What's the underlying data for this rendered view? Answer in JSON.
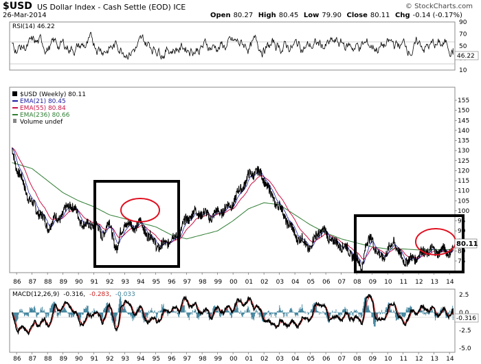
{
  "header": {
    "symbol": "$USD",
    "description": "US Dollar Index - Cash Settle (EOD) ICE",
    "date": "26-Mar-2014",
    "open_label": "Open",
    "open": "80.27",
    "high_label": "High",
    "high": "80.45",
    "low_label": "Low",
    "low": "79.90",
    "close_label": "Close",
    "close": "80.11",
    "chg_label": "Chg",
    "chg": "-0.14 (-0.17%)",
    "brand": "© StockCharts.com"
  },
  "rsi": {
    "label": "RSI(14) 46.22",
    "current": "46.22",
    "ticks": [
      "90",
      "70",
      "50",
      "30",
      "10"
    ]
  },
  "legend": {
    "main": "$USD (Weekly) 80.11",
    "ema21": "EMA(21) 80.45",
    "ema55": "EMA(55) 80.84",
    "ema236": "EMA(236) 80.66",
    "volume": "Volume undef",
    "price_tag": "80.11"
  },
  "macd": {
    "label_prefix": "MACD(12,26,9)",
    "v1": "-0.316,",
    "v2": "-0.283,",
    "v3": "-0.033",
    "current": "-0.316",
    "ticks": [
      "2.5",
      "0.0",
      "-2.5",
      "-5.0"
    ]
  },
  "colors": {
    "price": "#000000",
    "ema21": "#1a1aa0",
    "ema55": "#cc1144",
    "ema236": "#2e7d32",
    "macd": "#000000",
    "signal": "#cc2222",
    "histogram": "#3a7f9a",
    "annotation_box": "#000000",
    "annotation_circle": "#e01020"
  },
  "chart_data": {
    "type": "line",
    "title": "US Dollar Index - Cash Settle (EOD) ICE",
    "price_ticks": [
      "155",
      "150",
      "145",
      "140",
      "135",
      "130",
      "125",
      "120",
      "115",
      "110",
      "105",
      "100",
      "95",
      "90",
      "85",
      "80",
      "75"
    ],
    "x_ticks": [
      "86",
      "87",
      "88",
      "89",
      "90",
      "91",
      "92",
      "93",
      "94",
      "95",
      "96",
      "97",
      "98",
      "99",
      "00",
      "01",
      "02",
      "03",
      "04",
      "05",
      "06",
      "07",
      "08",
      "09",
      "10",
      "11",
      "12",
      "13",
      "14"
    ],
    "series": [
      {
        "name": "$USD (Weekly)",
        "x": [
          1985.7,
          1986.0,
          1986.5,
          1987.0,
          1987.5,
          1988.0,
          1988.5,
          1989.0,
          1989.5,
          1990.0,
          1990.5,
          1991.0,
          1991.5,
          1992.0,
          1992.5,
          1992.7,
          1993.0,
          1993.5,
          1994.0,
          1994.5,
          1995.0,
          1995.3,
          1995.6,
          1996.0,
          1996.5,
          1997.0,
          1997.5,
          1998.0,
          1998.5,
          1999.0,
          1999.5,
          2000.0,
          2000.5,
          2001.0,
          2001.5,
          2002.0,
          2002.5,
          2003.0,
          2003.5,
          2004.0,
          2004.5,
          2005.0,
          2005.5,
          2006.0,
          2006.5,
          2007.0,
          2007.5,
          2008.0,
          2008.3,
          2008.6,
          2009.0,
          2009.2,
          2009.5,
          2010.0,
          2010.4,
          2010.8,
          2011.0,
          2011.4,
          2011.8,
          2012.0,
          2012.5,
          2013.0,
          2013.5,
          2014.0,
          2014.23
        ],
        "values": [
          130,
          122,
          112,
          103,
          99,
          92,
          96,
          98,
          104,
          97,
          92,
          94,
          88,
          94,
          80,
          88,
          94,
          92,
          94,
          88,
          84,
          81,
          84,
          86,
          88,
          96,
          99,
          99,
          97,
          99,
          101,
          104,
          111,
          117,
          120,
          116,
          107,
          102,
          95,
          88,
          85,
          81,
          90,
          89,
          84,
          83,
          80,
          76,
          72,
          82,
          88,
          80,
          77,
          79,
          86,
          77,
          76,
          75,
          77,
          78,
          80,
          80,
          80,
          80,
          80.11
        ]
      },
      {
        "name": "EMA(236)",
        "x": [
          1985.7,
          1987.0,
          1988.0,
          1989.0,
          1990.0,
          1991.0,
          1992.0,
          1993.0,
          1994.0,
          1995.0,
          1996.0,
          1997.0,
          1998.0,
          1999.0,
          2000.0,
          2001.0,
          2002.0,
          2003.0,
          2004.0,
          2005.0,
          2006.0,
          2007.0,
          2008.0,
          2009.0,
          2010.0,
          2011.0,
          2012.0,
          2013.0,
          2014.0,
          2014.23
        ],
        "values": [
          124,
          121,
          115,
          109,
          105,
          102,
          98,
          96,
          94,
          92,
          88,
          86,
          88,
          90,
          95,
          101,
          104,
          103,
          98,
          93,
          89,
          86,
          84,
          82,
          81,
          81,
          80.5,
          80.6,
          80.7,
          80.66
        ]
      }
    ],
    "rsi_ylim": [
      10,
      90
    ],
    "macd_ylim": [
      -5.0,
      2.5
    ]
  }
}
